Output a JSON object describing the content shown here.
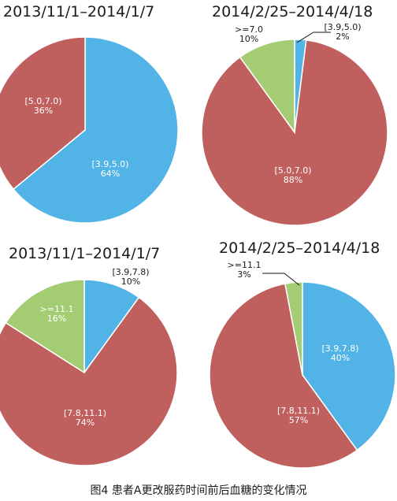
{
  "chart_data": [
    {
      "type": "pie",
      "title": "2013/11/1–2014/1/7",
      "slices": [
        {
          "label": "[3.9,5.0)",
          "pct_label": "64%",
          "value": 64,
          "color": "#52b3e6"
        },
        {
          "label": "[5.0,7.0)",
          "pct_label": "36%",
          "value": 36,
          "color": "#c0605e"
        }
      ]
    },
    {
      "type": "pie",
      "title": "2014/2/25–2014/4/18",
      "slices": [
        {
          "label": "[3.9,5.0)",
          "pct_label": "2%",
          "value": 2,
          "color": "#52b3e6"
        },
        {
          "label": "[5.0,7.0)",
          "pct_label": "88%",
          "value": 88,
          "color": "#c0605e"
        },
        {
          "label": ">=7.0",
          "pct_label": "10%",
          "value": 10,
          "color": "#a3cc73"
        }
      ]
    },
    {
      "type": "pie",
      "title": "2013/11/1–2014/1/7",
      "slices": [
        {
          "label": "[3.9,7.8)",
          "pct_label": "10%",
          "value": 10,
          "color": "#52b3e6"
        },
        {
          "label": "[7.8,11.1)",
          "pct_label": "74%",
          "value": 74,
          "color": "#c0605e"
        },
        {
          "label": ">=11.1",
          "pct_label": "16%",
          "value": 16,
          "color": "#a3cc73"
        }
      ]
    },
    {
      "type": "pie",
      "title": "2014/2/25–2014/4/18",
      "slices": [
        {
          "label": "[3.9,7.8)",
          "pct_label": "40%",
          "value": 40,
          "color": "#52b3e6"
        },
        {
          "label": "[7.8,11.1)",
          "pct_label": "57%",
          "value": 57,
          "color": "#c0605e"
        },
        {
          "label": ">=11.1",
          "pct_label": "3%",
          "value": 3,
          "color": "#a3cc73"
        }
      ]
    }
  ],
  "caption": "图4 患者A更改服药时间前后血糖的变化情况"
}
